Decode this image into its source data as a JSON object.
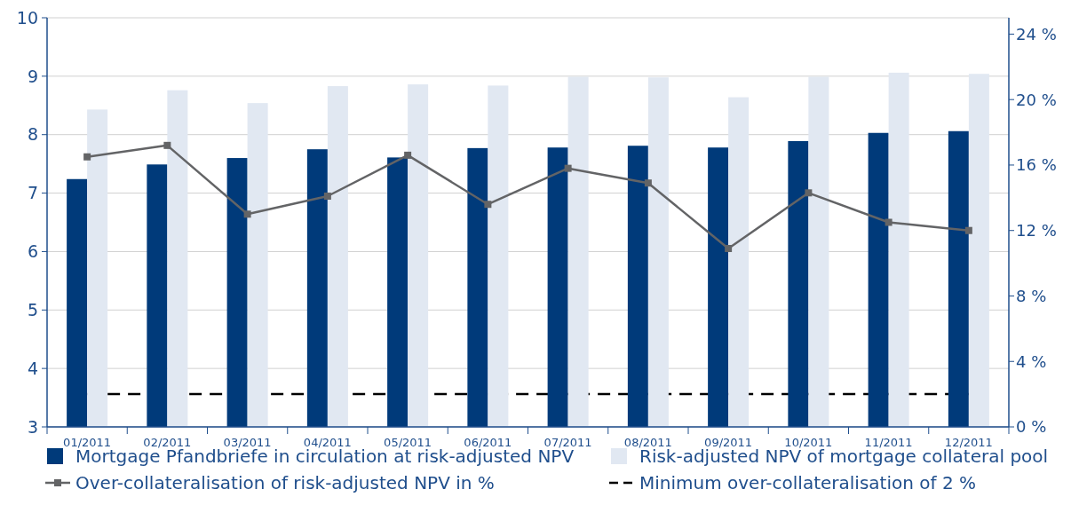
{
  "chart_data": {
    "type": "bar",
    "categories": [
      "01/2011",
      "02/2011",
      "03/2011",
      "04/2011",
      "05/2011",
      "06/2011",
      "07/2011",
      "08/2011",
      "09/2011",
      "10/2011",
      "11/2011",
      "12/2011"
    ],
    "series": [
      {
        "name": "Mortgage Pfandbriefe in circulation at risk-adjusted NPV",
        "color": "#003a7a",
        "values": [
          7.24,
          7.49,
          7.6,
          7.75,
          7.61,
          7.77,
          7.78,
          7.81,
          7.78,
          7.89,
          8.03,
          8.06
        ]
      },
      {
        "name": "Risk-adjusted NPV of mortgage collateral pool",
        "color": "#e1e8f2",
        "values": [
          8.43,
          8.76,
          8.54,
          8.83,
          8.86,
          8.84,
          8.99,
          8.98,
          8.64,
          8.99,
          9.06,
          9.04
        ]
      },
      {
        "name": "Over-collateralisation of risk-adjusted NPV in %",
        "type": "line",
        "axis": "y2",
        "color": "#636466",
        "marker": "square",
        "values": [
          16.5,
          17.2,
          13.0,
          14.1,
          16.6,
          13.6,
          15.8,
          14.9,
          10.9,
          14.3,
          12.5,
          12.0
        ]
      }
    ],
    "ylim": [
      3,
      10
    ],
    "yticks": [
      3,
      4,
      5,
      6,
      7,
      8,
      9,
      10
    ],
    "y2lim": [
      0,
      25
    ],
    "y2ticks": [
      {
        "value": 0,
        "label": "0 %"
      },
      {
        "value": 4,
        "label": "4 %"
      },
      {
        "value": 8,
        "label": "8 %"
      },
      {
        "value": 12,
        "label": "12 %"
      },
      {
        "value": 16,
        "label": "16 %"
      },
      {
        "value": 20,
        "label": "20 %"
      },
      {
        "value": 24,
        "label": "24 %"
      }
    ],
    "ref_lines": [
      {
        "axis": "y2",
        "value": 2,
        "label": "Minimum over-collateralisation of 2 %",
        "color": "#000000",
        "line_style": "dashed"
      }
    ],
    "grid": "y",
    "legend": "bottom"
  }
}
